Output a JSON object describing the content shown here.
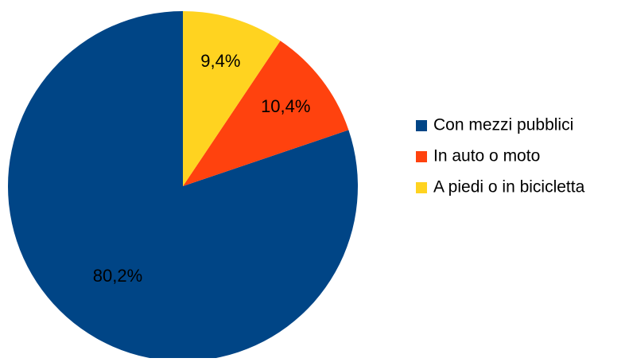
{
  "chart_data": {
    "type": "pie",
    "title": "",
    "series": [
      {
        "values": [
          80.2,
          10.4,
          9.4
        ]
      }
    ],
    "categories": [
      "Con mezzi pubblici",
      "In auto o moto",
      "A piedi o in bicicletta"
    ],
    "values": [
      80.2,
      10.4,
      9.4
    ],
    "data_labels": [
      "80,2%",
      "10,4%",
      "9,4%"
    ],
    "colors": [
      "#004586",
      "#ff420e",
      "#ffd320"
    ],
    "legend": {
      "placement": "right",
      "entries": [
        "Con mezzi pubblici",
        "In auto o moto",
        "A piedi o in bicicletta"
      ]
    },
    "start_angle": "top",
    "direction": "counter-clockwise"
  }
}
